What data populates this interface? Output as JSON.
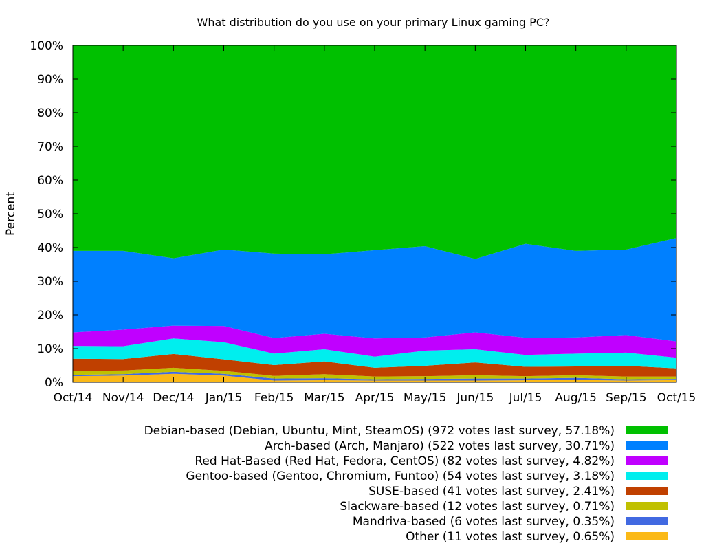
{
  "chart_data": {
    "type": "area",
    "stacked": true,
    "title": "What distribution do you use on your primary Linux gaming PC?",
    "xlabel": "",
    "ylabel": "Percent",
    "ylim": [
      0,
      100
    ],
    "yticks": [
      "0%",
      "10%",
      "20%",
      "30%",
      "40%",
      "50%",
      "60%",
      "70%",
      "80%",
      "90%",
      "100%"
    ],
    "categories": [
      "Oct/14",
      "Nov/14",
      "Dec/14",
      "Jan/15",
      "Feb/15",
      "Mar/15",
      "Apr/15",
      "May/15",
      "Jun/15",
      "Jul/15",
      "Aug/15",
      "Sep/15",
      "Oct/15"
    ],
    "grid": false,
    "legend_position": "bottom-right",
    "series": [
      {
        "name": "Other (11 votes last survey, 0.65%)",
        "color": "#fbb917",
        "values": [
          1.8,
          2.0,
          2.5,
          2.0,
          0.5,
          0.6,
          0.5,
          0.5,
          0.5,
          0.6,
          0.7,
          0.5,
          0.65
        ]
      },
      {
        "name": "Mandriva-based (6 votes last survey, 0.35%)",
        "color": "#4169e1",
        "values": [
          0.4,
          0.4,
          0.6,
          0.5,
          0.6,
          0.6,
          0.4,
          0.5,
          0.6,
          0.5,
          0.6,
          0.4,
          0.35
        ]
      },
      {
        "name": "Slackware-based (12 votes last survey, 0.71%)",
        "color": "#c0c000",
        "values": [
          1.2,
          1.1,
          1.2,
          0.9,
          0.8,
          1.2,
          0.8,
          0.8,
          1.0,
          0.7,
          0.8,
          0.8,
          0.71
        ]
      },
      {
        "name": "SUSE-based (41 votes last survey, 2.41%)",
        "color": "#c04000",
        "values": [
          3.6,
          3.4,
          4.1,
          3.4,
          3.2,
          3.8,
          2.6,
          3.1,
          3.8,
          2.8,
          2.6,
          3.2,
          2.41
        ]
      },
      {
        "name": "Gentoo-based (Gentoo, Chromium, Funtoo) (54 votes last survey, 3.18%)",
        "color": "#00eeee",
        "values": [
          3.8,
          3.8,
          4.6,
          5.1,
          3.4,
          3.6,
          3.3,
          4.5,
          3.9,
          3.5,
          3.8,
          3.9,
          3.18
        ]
      },
      {
        "name": "Red Hat-Based (Red Hat, Fedora, CentOS) (82 votes last survey, 4.82%)",
        "color": "#c000ff",
        "values": [
          4.0,
          4.9,
          3.8,
          4.8,
          4.6,
          4.6,
          5.4,
          3.9,
          5.0,
          5.1,
          4.8,
          5.2,
          4.82
        ]
      },
      {
        "name": "Arch-based (Arch, Manjaro) (522 votes last survey, 30.71%)",
        "color": "#0080ff",
        "values": [
          24.2,
          23.4,
          20.0,
          22.7,
          25.1,
          23.6,
          26.2,
          27.1,
          21.8,
          27.9,
          25.7,
          25.4,
          30.71
        ]
      },
      {
        "name": "Debian-based (Debian, Ubuntu, Mint, SteamOS) (972 votes last survey, 57.18%)",
        "color": "#00c000",
        "values": [
          61.0,
          61.0,
          63.2,
          60.6,
          61.8,
          61.6,
          60.8,
          59.6,
          63.4,
          58.9,
          61.0,
          60.6,
          57.18
        ]
      }
    ]
  }
}
